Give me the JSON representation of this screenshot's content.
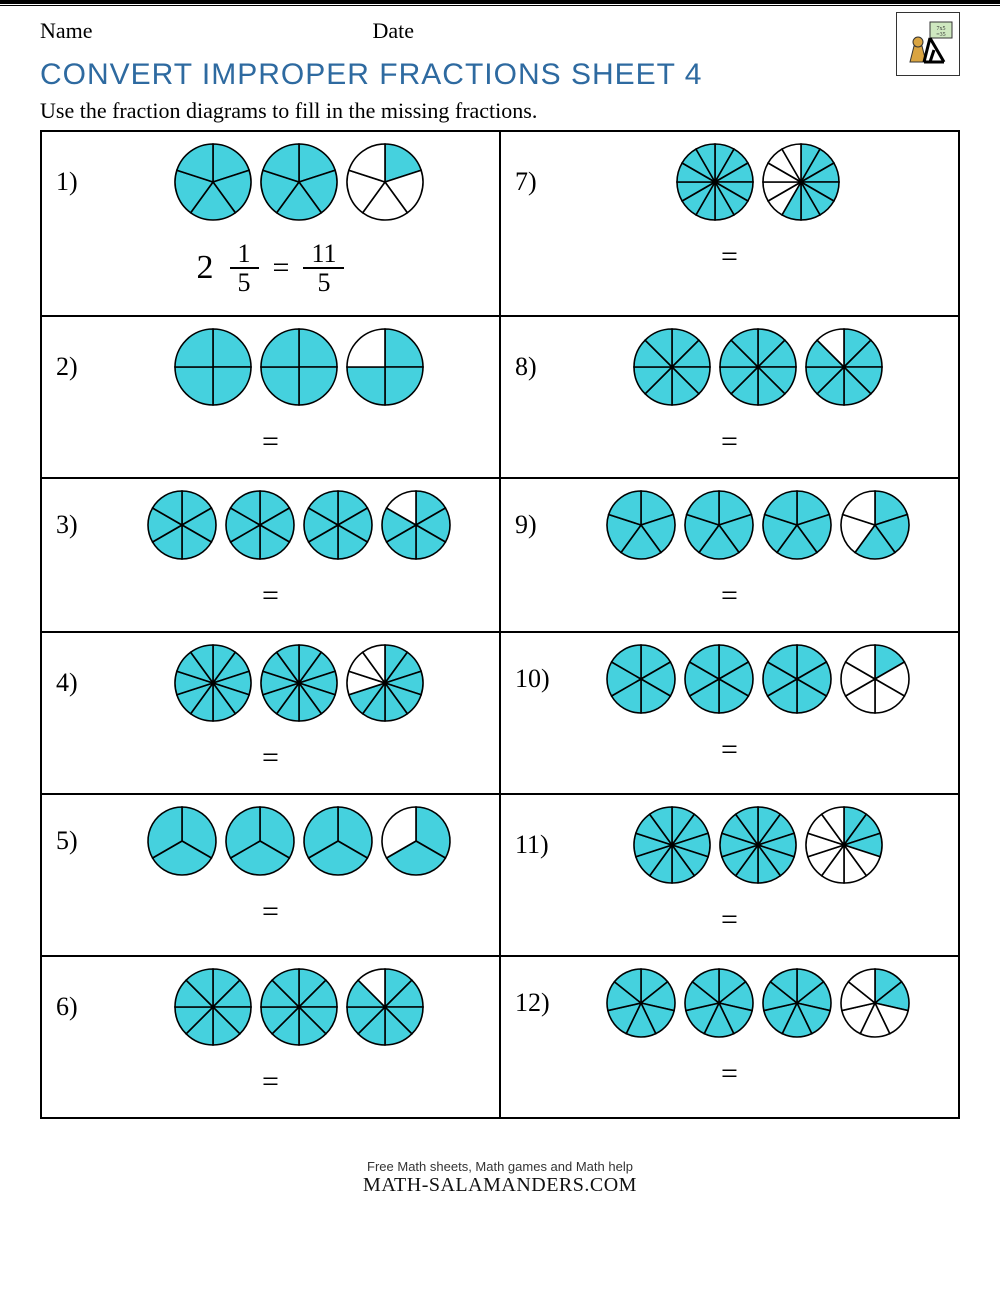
{
  "meta": {
    "name_label": "Name",
    "date_label": "Date"
  },
  "title": "CONVERT IMPROPER FRACTIONS SHEET 4",
  "instructions": "Use the fraction diagrams to fill in the missing fractions.",
  "styling": {
    "fill_color": "#45d1de",
    "stroke_color": "#000000",
    "stroke_width": 1.6,
    "circle_radius": 38,
    "title_color": "#2e6aa0",
    "title_fontsize": 30,
    "body_fontsize": 22,
    "answer_fontsize": 30,
    "grid_cols": 2,
    "grid_rows": 6,
    "cell_border_color": "#000000"
  },
  "problems": [
    {
      "n": "1)",
      "circles": [
        {
          "slices": 5,
          "filled": 5
        },
        {
          "slices": 5,
          "filled": 5
        },
        {
          "slices": 5,
          "filled": 1
        }
      ],
      "answer": {
        "whole": "2",
        "num": "1",
        "den": "5",
        "imp_num": "11",
        "imp_den": "5",
        "show": true
      }
    },
    {
      "n": "7)",
      "circles": [
        {
          "slices": 12,
          "filled": 12
        },
        {
          "slices": 12,
          "filled": 7
        }
      ],
      "answer": {
        "show": false
      }
    },
    {
      "n": "2)",
      "circles": [
        {
          "slices": 4,
          "filled": 4
        },
        {
          "slices": 4,
          "filled": 4
        },
        {
          "slices": 4,
          "filled": 3
        }
      ],
      "answer": {
        "show": false
      }
    },
    {
      "n": "8)",
      "circles": [
        {
          "slices": 8,
          "filled": 8
        },
        {
          "slices": 8,
          "filled": 8
        },
        {
          "slices": 8,
          "filled": 7
        }
      ],
      "answer": {
        "show": false
      }
    },
    {
      "n": "3)",
      "circles": [
        {
          "slices": 6,
          "filled": 6
        },
        {
          "slices": 6,
          "filled": 6
        },
        {
          "slices": 6,
          "filled": 6
        },
        {
          "slices": 6,
          "filled": 5
        }
      ],
      "answer": {
        "show": false
      }
    },
    {
      "n": "9)",
      "circles": [
        {
          "slices": 5,
          "filled": 5
        },
        {
          "slices": 5,
          "filled": 5
        },
        {
          "slices": 5,
          "filled": 5
        },
        {
          "slices": 5,
          "filled": 3
        }
      ],
      "answer": {
        "show": false
      }
    },
    {
      "n": "4)",
      "circles": [
        {
          "slices": 10,
          "filled": 10
        },
        {
          "slices": 10,
          "filled": 10
        },
        {
          "slices": 10,
          "filled": 7
        }
      ],
      "answer": {
        "show": false
      }
    },
    {
      "n": "10)",
      "circles": [
        {
          "slices": 6,
          "filled": 6
        },
        {
          "slices": 6,
          "filled": 6
        },
        {
          "slices": 6,
          "filled": 6
        },
        {
          "slices": 6,
          "filled": 1
        }
      ],
      "answer": {
        "show": false
      }
    },
    {
      "n": "5)",
      "circles": [
        {
          "slices": 3,
          "filled": 3
        },
        {
          "slices": 3,
          "filled": 3
        },
        {
          "slices": 3,
          "filled": 3
        },
        {
          "slices": 3,
          "filled": 2
        }
      ],
      "answer": {
        "show": false
      }
    },
    {
      "n": "11)",
      "circles": [
        {
          "slices": 10,
          "filled": 10
        },
        {
          "slices": 10,
          "filled": 10
        },
        {
          "slices": 10,
          "filled": 3
        }
      ],
      "answer": {
        "show": false
      }
    },
    {
      "n": "6)",
      "circles": [
        {
          "slices": 8,
          "filled": 8
        },
        {
          "slices": 8,
          "filled": 8
        },
        {
          "slices": 8,
          "filled": 7
        }
      ],
      "answer": {
        "show": false
      }
    },
    {
      "n": "12)",
      "circles": [
        {
          "slices": 7,
          "filled": 7
        },
        {
          "slices": 7,
          "filled": 7
        },
        {
          "slices": 7,
          "filled": 7
        },
        {
          "slices": 7,
          "filled": 2
        }
      ],
      "answer": {
        "show": false
      }
    }
  ],
  "footer": {
    "line1": "Free Math sheets, Math games and Math help",
    "brand": "MATH-SALAMANDERS.COM"
  }
}
